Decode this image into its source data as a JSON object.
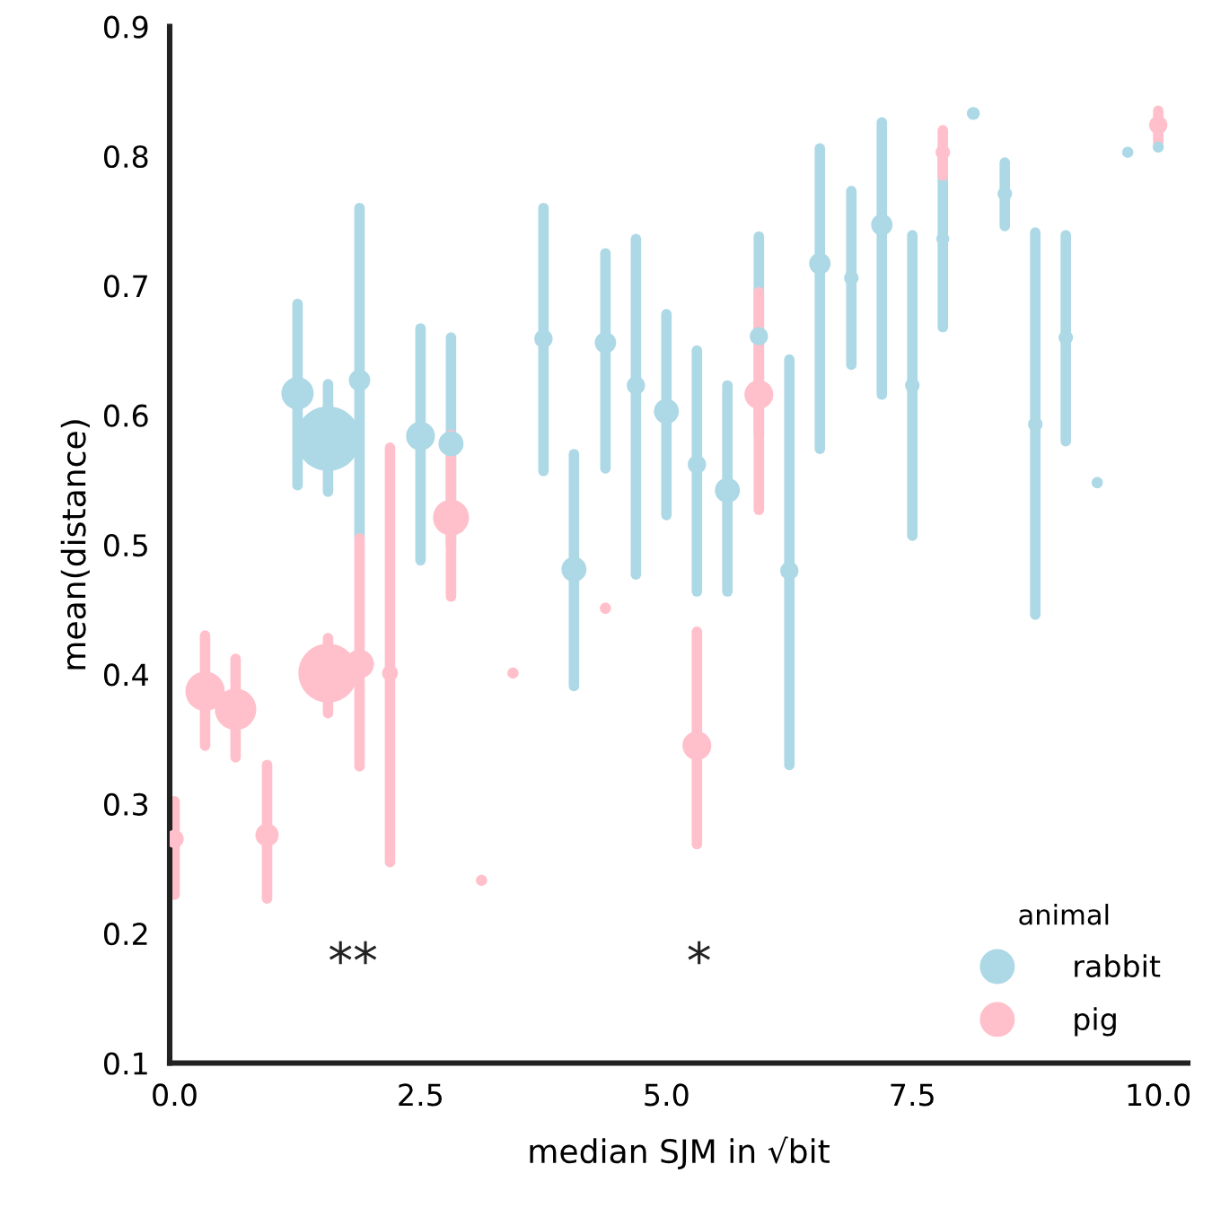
{
  "chart_data": {
    "type": "bubble",
    "xlabel": "median SJM in √bit",
    "ylabel": "mean(distance)",
    "legend_title": "animal",
    "legend": "bottom right",
    "grid": false,
    "marker": "circle",
    "xlim": [
      -0.05,
      10.3
    ],
    "xticks": [
      {
        "value": 0,
        "label": "0.0"
      },
      2.5,
      {
        "value": 5,
        "label": "5.0"
      },
      7.5,
      {
        "value": 10,
        "label": "10.0"
      }
    ],
    "ylim": [
      0.1,
      0.9
    ],
    "yticks": [
      0.1,
      0.2,
      0.3,
      0.4,
      0.5,
      0.6,
      0.7,
      0.8,
      0.9
    ],
    "series": [
      {
        "name": "rabbit",
        "color": "#add8e6",
        "x": [
          1.25,
          1.56,
          1.88,
          2.5,
          2.81,
          3.75,
          4.06,
          4.38,
          4.69,
          5.0,
          5.31,
          5.62,
          5.94,
          6.25,
          6.56,
          6.88,
          7.19,
          7.5,
          7.81,
          8.12,
          8.44,
          8.75,
          9.06,
          9.38,
          9.69,
          10.0
        ],
        "values": [
          0.617,
          0.582,
          0.627,
          0.584,
          0.578,
          0.659,
          0.481,
          0.656,
          0.623,
          0.603,
          0.562,
          0.542,
          0.661,
          0.48,
          0.717,
          0.706,
          0.747,
          0.623,
          0.736,
          0.833,
          0.771,
          0.593,
          0.66,
          0.548,
          0.803,
          0.807
        ],
        "errors": [
          [
            0.546,
            0.686
          ],
          [
            0.541,
            0.624
          ],
          [
            0.505,
            0.76
          ],
          [
            0.488,
            0.667
          ],
          [
            0.5,
            0.66
          ],
          [
            0.557,
            0.76
          ],
          [
            0.391,
            0.57
          ],
          [
            0.559,
            0.725
          ],
          [
            0.477,
            0.736
          ],
          [
            0.523,
            0.678
          ],
          [
            0.464,
            0.65
          ],
          [
            0.464,
            0.623
          ],
          [
            0.585,
            0.738
          ],
          [
            0.33,
            0.643
          ],
          [
            0.574,
            0.806
          ],
          [
            0.639,
            0.773
          ],
          [
            0.616,
            0.826
          ],
          [
            0.507,
            0.739
          ],
          [
            0.668,
            0.8
          ],
          null,
          [
            0.746,
            0.795
          ],
          [
            0.446,
            0.741
          ],
          [
            0.58,
            0.739
          ],
          null,
          null,
          null
        ],
        "sizes": [
          0.25,
          1,
          0.11,
          0.2,
          0.15,
          0.08,
          0.15,
          0.11,
          0.08,
          0.15,
          0.08,
          0.15,
          0.08,
          0.08,
          0.11,
          0.05,
          0.11,
          0.05,
          0.04,
          0.04,
          0.05,
          0.05,
          0.05,
          0.03,
          0.03,
          0.03
        ]
      },
      {
        "name": "pig",
        "color": "#ffc0cb",
        "x": [
          0.0,
          0.31,
          0.62,
          0.94,
          1.56,
          1.88,
          2.19,
          2.81,
          3.12,
          3.44,
          4.38,
          5.31,
          5.94,
          7.81,
          10.0
        ],
        "values": [
          0.273,
          0.387,
          0.373,
          0.276,
          0.401,
          0.408,
          0.401,
          0.521,
          0.241,
          0.401,
          0.451,
          0.345,
          0.616,
          0.803,
          0.824
        ],
        "errors": [
          [
            0.23,
            0.302
          ],
          [
            0.345,
            0.43
          ],
          [
            0.336,
            0.412
          ],
          [
            0.227,
            0.33
          ],
          [
            0.37,
            0.428
          ],
          [
            0.329,
            0.505
          ],
          [
            0.255,
            0.575
          ],
          [
            0.46,
            0.585
          ],
          null,
          null,
          null,
          [
            0.269,
            0.433
          ],
          [
            0.527,
            0.695
          ],
          [
            0.785,
            0.82
          ],
          [
            0.81,
            0.835
          ]
        ],
        "sizes": [
          0.08,
          0.37,
          0.41,
          0.13,
          0.84,
          0.2,
          0.06,
          0.31,
          0.03,
          0.03,
          0.03,
          0.2,
          0.2,
          0.05,
          0.08
        ]
      }
    ],
    "annotations": [
      "**",
      "*"
    ]
  }
}
